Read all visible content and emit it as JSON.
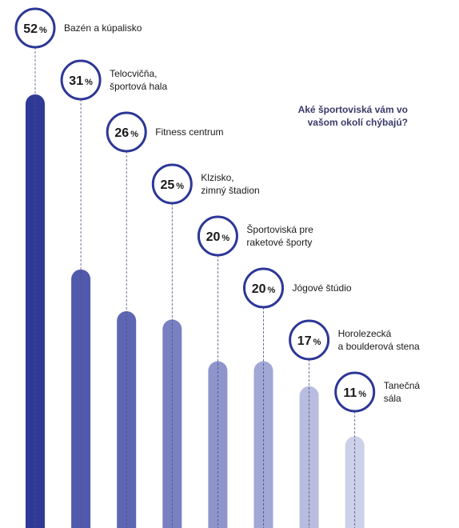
{
  "question": "Aké športoviská vám vo\nvašom okolí chýbajú?",
  "colors": {
    "ring": "#2d3796",
    "text": "#1a1a1a",
    "bars": [
      "#2f3a96",
      "#5159ac",
      "#5e66b4",
      "#7880c1",
      "#8e95cc",
      "#a2a8d5",
      "#b8bde0",
      "#ccd0e9"
    ]
  },
  "chart_data": {
    "type": "bar",
    "unit": "%",
    "ylim": [
      0,
      52
    ],
    "categories": [
      "Bazén a kúpalisko",
      "Telocvičňa,\nšportová hala",
      "Fitness centrum",
      "Klzisko,\nzimný štadion",
      "Športoviská pre\nraketové športy",
      "Jógové štúdio",
      "Horolezecká\na boulderová stena",
      "Tanečná\nsála"
    ],
    "values": [
      52,
      31,
      26,
      25,
      20,
      20,
      17,
      11
    ]
  }
}
